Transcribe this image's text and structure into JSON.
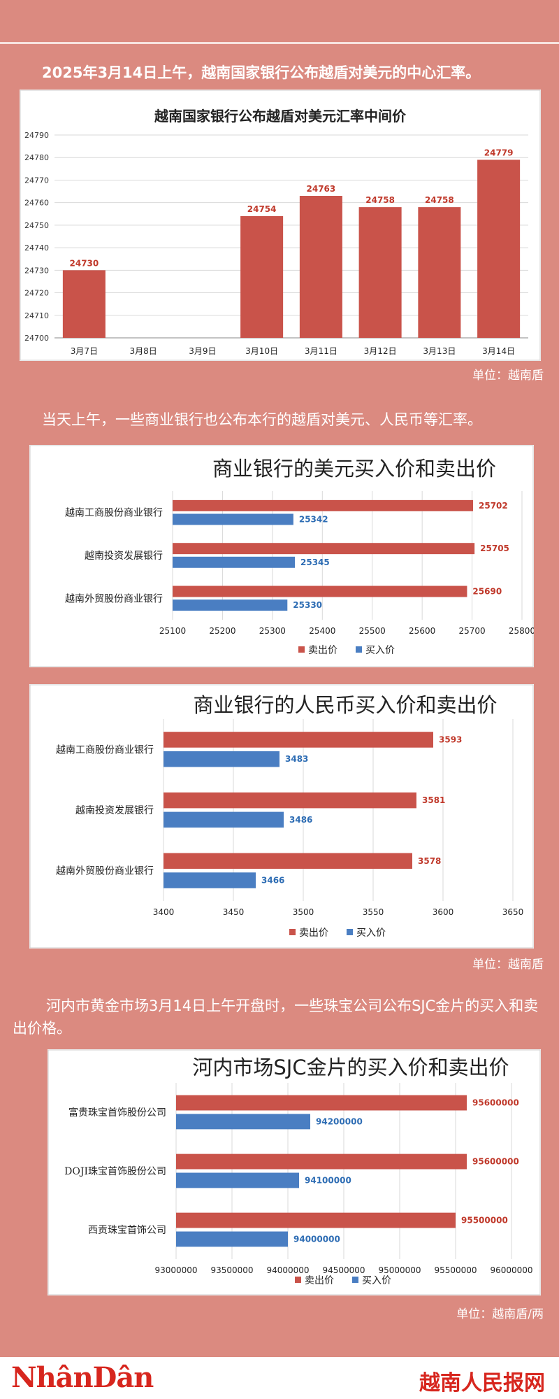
{
  "texts": {
    "intro1": "2025年3月14日上午，越南国家银行公布越盾对美元的中心汇率。",
    "intro2": "当天上午，一些商业银行也公布本行的越盾对美元、人民币等汇率。",
    "intro3": "河内市黄金市场3月14日上午开盘时，一些珠宝公司公布SJC金片的买入和卖出价格。",
    "unit1": "单位：越南盾",
    "unit2": "单位：越南盾",
    "unit3": "单位：越南盾/两"
  },
  "footer": {
    "logo_left": "NhânDân",
    "logo_right": "越南人民报网"
  },
  "colors": {
    "page_bg": "#db8a80",
    "sell": "#c9534a",
    "buy": "#4a7ec2",
    "sell_label": "#c0392b",
    "buy_label": "#2e6db4"
  },
  "chart_data": [
    {
      "type": "bar",
      "title": "越南国家银行公布越盾对美元汇率中间价",
      "categories": [
        "3月7日",
        "3月8日",
        "3月9日",
        "3月10日",
        "3月11日",
        "3月12日",
        "3月13日",
        "3月14日"
      ],
      "values": [
        24730,
        null,
        null,
        24754,
        24763,
        24758,
        24758,
        24779
      ],
      "data_labels": [
        "24730",
        "",
        "",
        "24754",
        "24763",
        "24758",
        "24758",
        "24779"
      ],
      "ylim": [
        24700,
        24790
      ],
      "yticks": [
        "24700",
        "24710",
        "24720",
        "24730",
        "24740",
        "24750",
        "24760",
        "24770",
        "24780",
        "24790"
      ],
      "grid": true
    },
    {
      "type": "bar",
      "orientation": "horizontal",
      "title": "商业银行的美元买入价和卖出价",
      "categories": [
        "越南工商股份商业银行",
        "越南投资发展银行",
        "越南外贸股份商业银行"
      ],
      "series": [
        {
          "name": "卖出价",
          "values": [
            25702,
            25705,
            25690
          ],
          "labels": [
            "25702",
            "25705",
            "25690"
          ]
        },
        {
          "name": "买入价",
          "values": [
            25342,
            25345,
            25330
          ],
          "labels": [
            "25342",
            "25345",
            "25330"
          ]
        }
      ],
      "xlim": [
        25100,
        25800
      ],
      "xticks": [
        "25100",
        "25200",
        "25300",
        "25400",
        "25500",
        "25600",
        "25700",
        "25800"
      ],
      "legend": "bottom",
      "grid": true
    },
    {
      "type": "bar",
      "orientation": "horizontal",
      "title": "商业银行的人民币买入价和卖出价",
      "categories": [
        "越南工商股份商业银行",
        "越南投资发展银行",
        "越南外贸股份商业银行"
      ],
      "series": [
        {
          "name": "卖出价",
          "values": [
            3593,
            3581,
            3578
          ],
          "labels": [
            "3593",
            "3581",
            "3578"
          ]
        },
        {
          "name": "买入价",
          "values": [
            3483,
            3486,
            3466
          ],
          "labels": [
            "3483",
            "3486",
            "3466"
          ]
        }
      ],
      "xlim": [
        3400,
        3650
      ],
      "xticks": [
        "3400",
        "3450",
        "3500",
        "3550",
        "3600",
        "3650"
      ],
      "legend": "bottom",
      "grid": true
    },
    {
      "type": "bar",
      "orientation": "horizontal",
      "title": "河内市场SJC金片的买入价和卖出价",
      "categories": [
        "富贵珠宝首饰股份公司",
        "DOJI珠宝首饰股份公司",
        "西贡珠宝首饰公司"
      ],
      "series": [
        {
          "name": "卖出价",
          "values": [
            95600000,
            95600000,
            95500000
          ],
          "labels": [
            "95600000",
            "95600000",
            "95500000"
          ]
        },
        {
          "name": "买入价",
          "values": [
            94200000,
            94100000,
            94000000
          ],
          "labels": [
            "94200000",
            "94100000",
            "94000000"
          ]
        }
      ],
      "xlim": [
        93000000,
        96000000
      ],
      "xticks": [
        "93000000",
        "93500000",
        "94000000",
        "94500000",
        "95000000",
        "95500000",
        "96000000"
      ],
      "legend": "bottom",
      "grid": true
    }
  ]
}
